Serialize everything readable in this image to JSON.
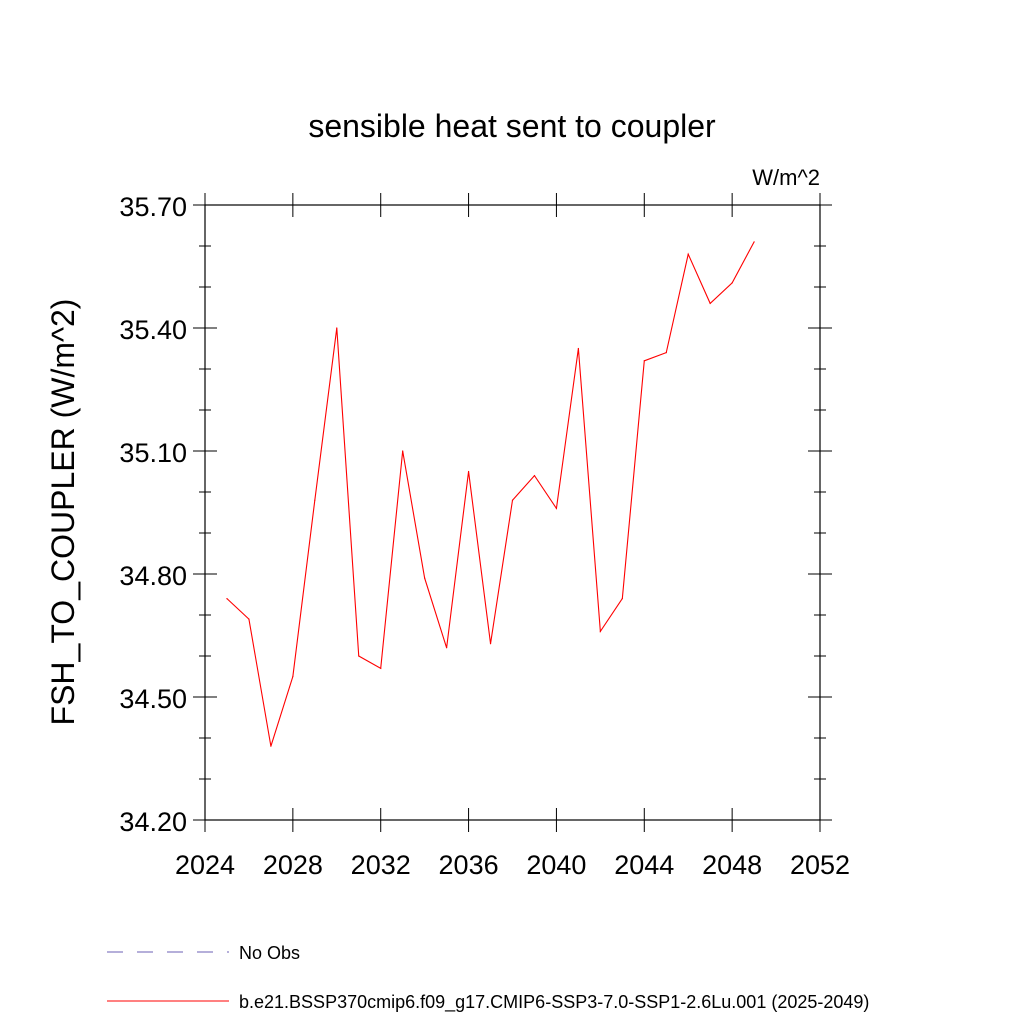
{
  "chart_data": {
    "type": "line",
    "title": "sensible heat sent to coupler",
    "units": "W/m^2",
    "ylabel": "FSH_TO_COUPLER  (W/m^2)",
    "xlabel": "",
    "xlim": [
      2024,
      2052
    ],
    "ylim": [
      34.2,
      35.7
    ],
    "x_ticks": [
      "2024",
      "2028",
      "2032",
      "2036",
      "2040",
      "2044",
      "2048",
      "2052"
    ],
    "y_ticks": [
      "34.20",
      "34.50",
      "34.80",
      "35.10",
      "35.40",
      "35.70"
    ],
    "grid": false,
    "legend_position": "bottom",
    "colors": {
      "series": "#ff0000",
      "obs": "#6b5fb5",
      "axis": "#000000"
    },
    "legend": [
      {
        "label": "No Obs",
        "style": "dashed",
        "color": "#6b5fb5"
      },
      {
        "label": "b.e21.BSSP370cmip6.f09_g17.CMIP6-SSP3-7.0-SSP1-2.6Lu.001 (2025-2049)",
        "style": "solid",
        "color": "#ff0000"
      }
    ],
    "series": [
      {
        "name": "b.e21.BSSP370cmip6.f09_g17.CMIP6-SSP3-7.0-SSP1-2.6Lu.001 (2025-2049)",
        "x": [
          2025,
          2026,
          2027,
          2028,
          2029,
          2030,
          2031,
          2032,
          2033,
          2034,
          2035,
          2036,
          2037,
          2038,
          2039,
          2040,
          2041,
          2042,
          2043,
          2044,
          2045,
          2046,
          2047,
          2048,
          2049
        ],
        "values": [
          34.74,
          34.69,
          34.38,
          34.55,
          34.98,
          35.4,
          34.6,
          34.57,
          35.1,
          34.79,
          34.62,
          35.05,
          34.63,
          34.98,
          35.04,
          34.96,
          35.35,
          34.66,
          34.74,
          35.32,
          35.34,
          35.58,
          35.46,
          35.51,
          35.61
        ]
      }
    ]
  }
}
